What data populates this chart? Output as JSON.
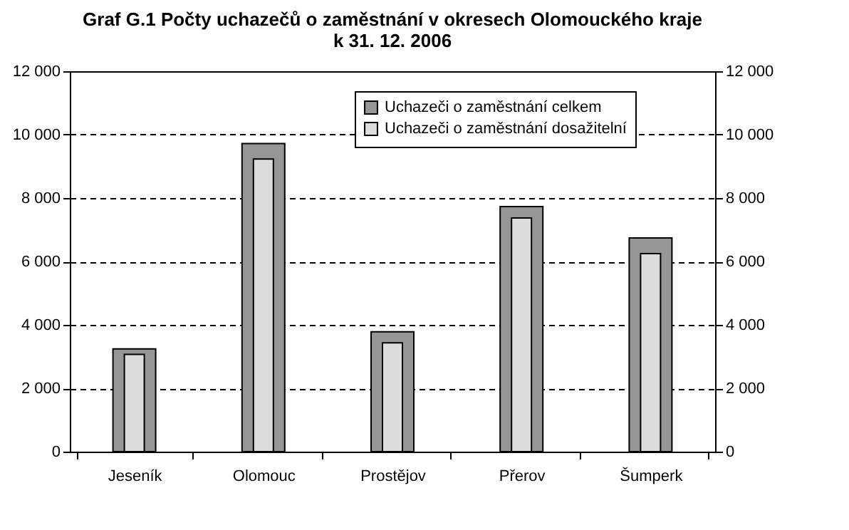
{
  "chart_data": {
    "type": "bar",
    "title": "Graf G.1  Počty uchazečů o zaměstnání v okresech Olomouckého kraje\nk 31. 12. 2006",
    "categories": [
      "Jeseník",
      "Olomouc",
      "Prostějov",
      "Přerov",
      "Šumperk"
    ],
    "series": [
      {
        "name": "Uchazeči o zaměstnání celkem",
        "color": "#969696",
        "values": [
          3240,
          9720,
          3780,
          7730,
          6740
        ]
      },
      {
        "name": "Uchazeči o zaměstnání dosažitelní",
        "color": "#dcdcdc",
        "values": [
          3070,
          9230,
          3430,
          7370,
          6250
        ]
      }
    ],
    "ylim": [
      0,
      12000
    ],
    "yticks": [
      0,
      {
        "value": 2000,
        "label": "2 000"
      },
      {
        "value": 4000,
        "label": "4 000"
      },
      {
        "value": 6000,
        "label": "6 000"
      },
      {
        "value": 8000,
        "label": "8 000"
      },
      {
        "value": 10000,
        "label": "10 000"
      },
      {
        "value": 12000,
        "label": "12 000"
      }
    ],
    "y2lim": [
      0,
      12000
    ],
    "y2ticks": [
      0,
      {
        "value": 2000,
        "label": "2 000"
      },
      {
        "value": 4000,
        "label": "4 000"
      },
      {
        "value": 6000,
        "label": "6 000"
      },
      {
        "value": 8000,
        "label": "8 000"
      },
      {
        "value": 10000,
        "label": "10 000"
      },
      {
        "value": 12000,
        "label": "12 000"
      }
    ],
    "grid": "y",
    "legend": "top right"
  }
}
